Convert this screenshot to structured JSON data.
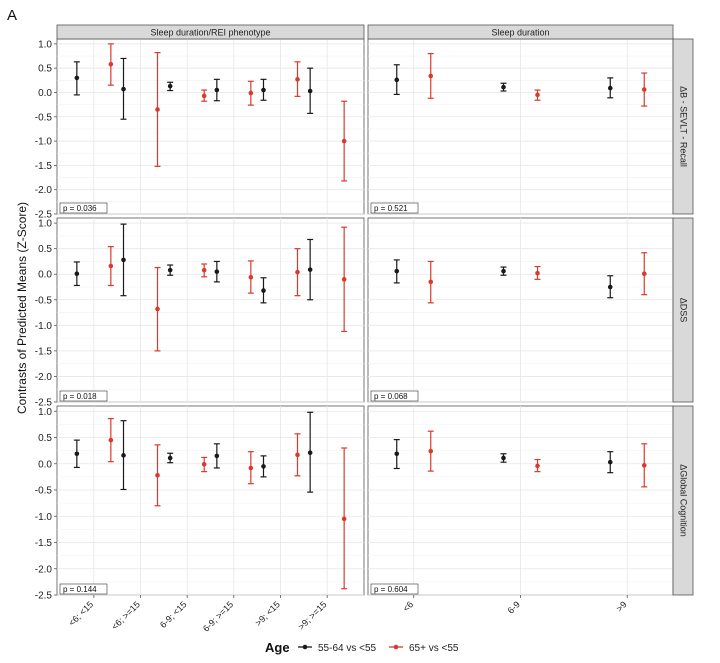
{
  "figure": {
    "panel_letter": "A",
    "ylabel": "Contrasts of Predicted Means (Z-Score)",
    "legend_title": "Age"
  },
  "chart_data": {
    "type": "scatter",
    "subtype": "point-range facet grid",
    "ylim": [
      -2.5,
      1.1
    ],
    "yticks": [
      1.0,
      0.5,
      0.0,
      -0.5,
      -1.0,
      -1.5,
      -2.0,
      -2.5
    ],
    "ytick_labels": [
      "1.0",
      "0.5",
      "0.0",
      "-0.5",
      "-1.0",
      "-1.5",
      "-2.0",
      "-2.5"
    ],
    "grid": true,
    "legend_position": "bottom",
    "columns": [
      {
        "title": "Sleep duration/REI phenotype",
        "categories": [
          "<6; <15",
          "<6; >=15",
          "6-9; <15",
          "6-9; >=15",
          ">9; <15",
          ">9; >=15"
        ]
      },
      {
        "title": "Sleep duration",
        "categories": [
          "<6",
          "6-9",
          ">9"
        ]
      }
    ],
    "rows": [
      "ΔB - SEVLT - Recall",
      "ΔDSS",
      "ΔGlobal Cognition"
    ],
    "series": [
      {
        "name": "55-64 vs <55",
        "color": "#1a1a1a"
      },
      {
        "name": "65+ vs <55",
        "color": "#d93a2b"
      }
    ],
    "panels": [
      {
        "row": 0,
        "col": 0,
        "p_label": "p = 0.036",
        "points": [
          {
            "category": "<6; <15",
            "series": 0,
            "y": 0.3,
            "low": -0.05,
            "high": 0.63
          },
          {
            "category": "<6; <15",
            "series": 1,
            "y": 0.58,
            "low": 0.15,
            "high": 1.0
          },
          {
            "category": "<6; >=15",
            "series": 0,
            "y": 0.07,
            "low": -0.55,
            "high": 0.7
          },
          {
            "category": "<6; >=15",
            "series": 1,
            "y": -0.35,
            "low": -1.52,
            "high": 0.82
          },
          {
            "category": "6-9; <15",
            "series": 0,
            "y": 0.13,
            "low": 0.04,
            "high": 0.21
          },
          {
            "category": "6-9; <15",
            "series": 1,
            "y": -0.07,
            "low": -0.18,
            "high": 0.05
          },
          {
            "category": "6-9; >=15",
            "series": 0,
            "y": 0.05,
            "low": -0.17,
            "high": 0.27
          },
          {
            "category": "6-9; >=15",
            "series": 1,
            "y": -0.01,
            "low": -0.26,
            "high": 0.23
          },
          {
            "category": ">9; <15",
            "series": 0,
            "y": 0.05,
            "low": -0.16,
            "high": 0.27
          },
          {
            "category": ">9; <15",
            "series": 1,
            "y": 0.27,
            "low": -0.08,
            "high": 0.63
          },
          {
            "category": ">9; >=15",
            "series": 0,
            "y": 0.03,
            "low": -0.43,
            "high": 0.5
          },
          {
            "category": ">9; >=15",
            "series": 1,
            "y": -1.0,
            "low": -1.82,
            "high": -0.18
          }
        ]
      },
      {
        "row": 0,
        "col": 1,
        "p_label": "p = 0.521",
        "points": [
          {
            "category": "<6",
            "series": 0,
            "y": 0.26,
            "low": -0.04,
            "high": 0.57
          },
          {
            "category": "<6",
            "series": 1,
            "y": 0.34,
            "low": -0.12,
            "high": 0.8
          },
          {
            "category": "6-9",
            "series": 0,
            "y": 0.11,
            "low": 0.03,
            "high": 0.19
          },
          {
            "category": "6-9",
            "series": 1,
            "y": -0.05,
            "low": -0.16,
            "high": 0.05
          },
          {
            "category": ">9",
            "series": 0,
            "y": 0.09,
            "low": -0.11,
            "high": 0.3
          },
          {
            "category": ">9",
            "series": 1,
            "y": 0.06,
            "low": -0.28,
            "high": 0.4
          }
        ]
      },
      {
        "row": 1,
        "col": 0,
        "p_label": "p = 0.018",
        "points": [
          {
            "category": "<6; <15",
            "series": 0,
            "y": 0.01,
            "low": -0.22,
            "high": 0.24
          },
          {
            "category": "<6; <15",
            "series": 1,
            "y": 0.16,
            "low": -0.22,
            "high": 0.54
          },
          {
            "category": "<6; >=15",
            "series": 0,
            "y": 0.28,
            "low": -0.42,
            "high": 0.98
          },
          {
            "category": "<6; >=15",
            "series": 1,
            "y": -0.68,
            "low": -1.5,
            "high": 0.13
          },
          {
            "category": "6-9; <15",
            "series": 0,
            "y": 0.08,
            "low": -0.02,
            "high": 0.18
          },
          {
            "category": "6-9; <15",
            "series": 1,
            "y": 0.08,
            "low": -0.05,
            "high": 0.2
          },
          {
            "category": "6-9; >=15",
            "series": 0,
            "y": 0.05,
            "low": -0.15,
            "high": 0.25
          },
          {
            "category": "6-9; >=15",
            "series": 1,
            "y": -0.06,
            "low": -0.37,
            "high": 0.26
          },
          {
            "category": ">9; <15",
            "series": 0,
            "y": -0.32,
            "low": -0.56,
            "high": -0.07
          },
          {
            "category": ">9; <15",
            "series": 1,
            "y": 0.04,
            "low": -0.42,
            "high": 0.5
          },
          {
            "category": ">9; >=15",
            "series": 0,
            "y": 0.09,
            "low": -0.5,
            "high": 0.68
          },
          {
            "category": ">9; >=15",
            "series": 1,
            "y": -0.1,
            "low": -1.12,
            "high": 0.92
          }
        ]
      },
      {
        "row": 1,
        "col": 1,
        "p_label": "p = 0.068",
        "points": [
          {
            "category": "<6",
            "series": 0,
            "y": 0.06,
            "low": -0.17,
            "high": 0.28
          },
          {
            "category": "<6",
            "series": 1,
            "y": -0.15,
            "low": -0.56,
            "high": 0.25
          },
          {
            "category": "6-9",
            "series": 0,
            "y": 0.06,
            "low": -0.02,
            "high": 0.14
          },
          {
            "category": "6-9",
            "series": 1,
            "y": 0.02,
            "low": -0.1,
            "high": 0.15
          },
          {
            "category": ">9",
            "series": 0,
            "y": -0.25,
            "low": -0.46,
            "high": -0.03
          },
          {
            "category": ">9",
            "series": 1,
            "y": 0.01,
            "low": -0.4,
            "high": 0.42
          }
        ]
      },
      {
        "row": 2,
        "col": 0,
        "p_label": "p = 0.144",
        "points": [
          {
            "category": "<6; <15",
            "series": 0,
            "y": 0.19,
            "low": -0.07,
            "high": 0.45
          },
          {
            "category": "<6; <15",
            "series": 1,
            "y": 0.45,
            "low": 0.04,
            "high": 0.86
          },
          {
            "category": "<6; >=15",
            "series": 0,
            "y": 0.16,
            "low": -0.49,
            "high": 0.82
          },
          {
            "category": "<6; >=15",
            "series": 1,
            "y": -0.22,
            "low": -0.8,
            "high": 0.36
          },
          {
            "category": "6-9; <15",
            "series": 0,
            "y": 0.11,
            "low": 0.02,
            "high": 0.2
          },
          {
            "category": "6-9; <15",
            "series": 1,
            "y": -0.01,
            "low": -0.15,
            "high": 0.12
          },
          {
            "category": "6-9; >=15",
            "series": 0,
            "y": 0.15,
            "low": -0.08,
            "high": 0.38
          },
          {
            "category": "6-9; >=15",
            "series": 1,
            "y": -0.08,
            "low": -0.38,
            "high": 0.23
          },
          {
            "category": ">9; <15",
            "series": 0,
            "y": -0.05,
            "low": -0.25,
            "high": 0.15
          },
          {
            "category": ">9; <15",
            "series": 1,
            "y": 0.17,
            "low": -0.23,
            "high": 0.57
          },
          {
            "category": ">9; >=15",
            "series": 0,
            "y": 0.21,
            "low": -0.54,
            "high": 0.98
          },
          {
            "category": ">9; >=15",
            "series": 1,
            "y": -1.05,
            "low": -2.38,
            "high": 0.3
          }
        ]
      },
      {
        "row": 2,
        "col": 1,
        "p_label": "p = 0.604",
        "points": [
          {
            "category": "<6",
            "series": 0,
            "y": 0.19,
            "low": -0.09,
            "high": 0.46
          },
          {
            "category": "<6",
            "series": 1,
            "y": 0.24,
            "low": -0.14,
            "high": 0.62
          },
          {
            "category": "6-9",
            "series": 0,
            "y": 0.11,
            "low": 0.03,
            "high": 0.19
          },
          {
            "category": "6-9",
            "series": 1,
            "y": -0.04,
            "low": -0.15,
            "high": 0.08
          },
          {
            "category": ">9",
            "series": 0,
            "y": 0.03,
            "low": -0.17,
            "high": 0.23
          },
          {
            "category": ">9",
            "series": 1,
            "y": -0.03,
            "low": -0.44,
            "high": 0.38
          }
        ]
      }
    ]
  }
}
